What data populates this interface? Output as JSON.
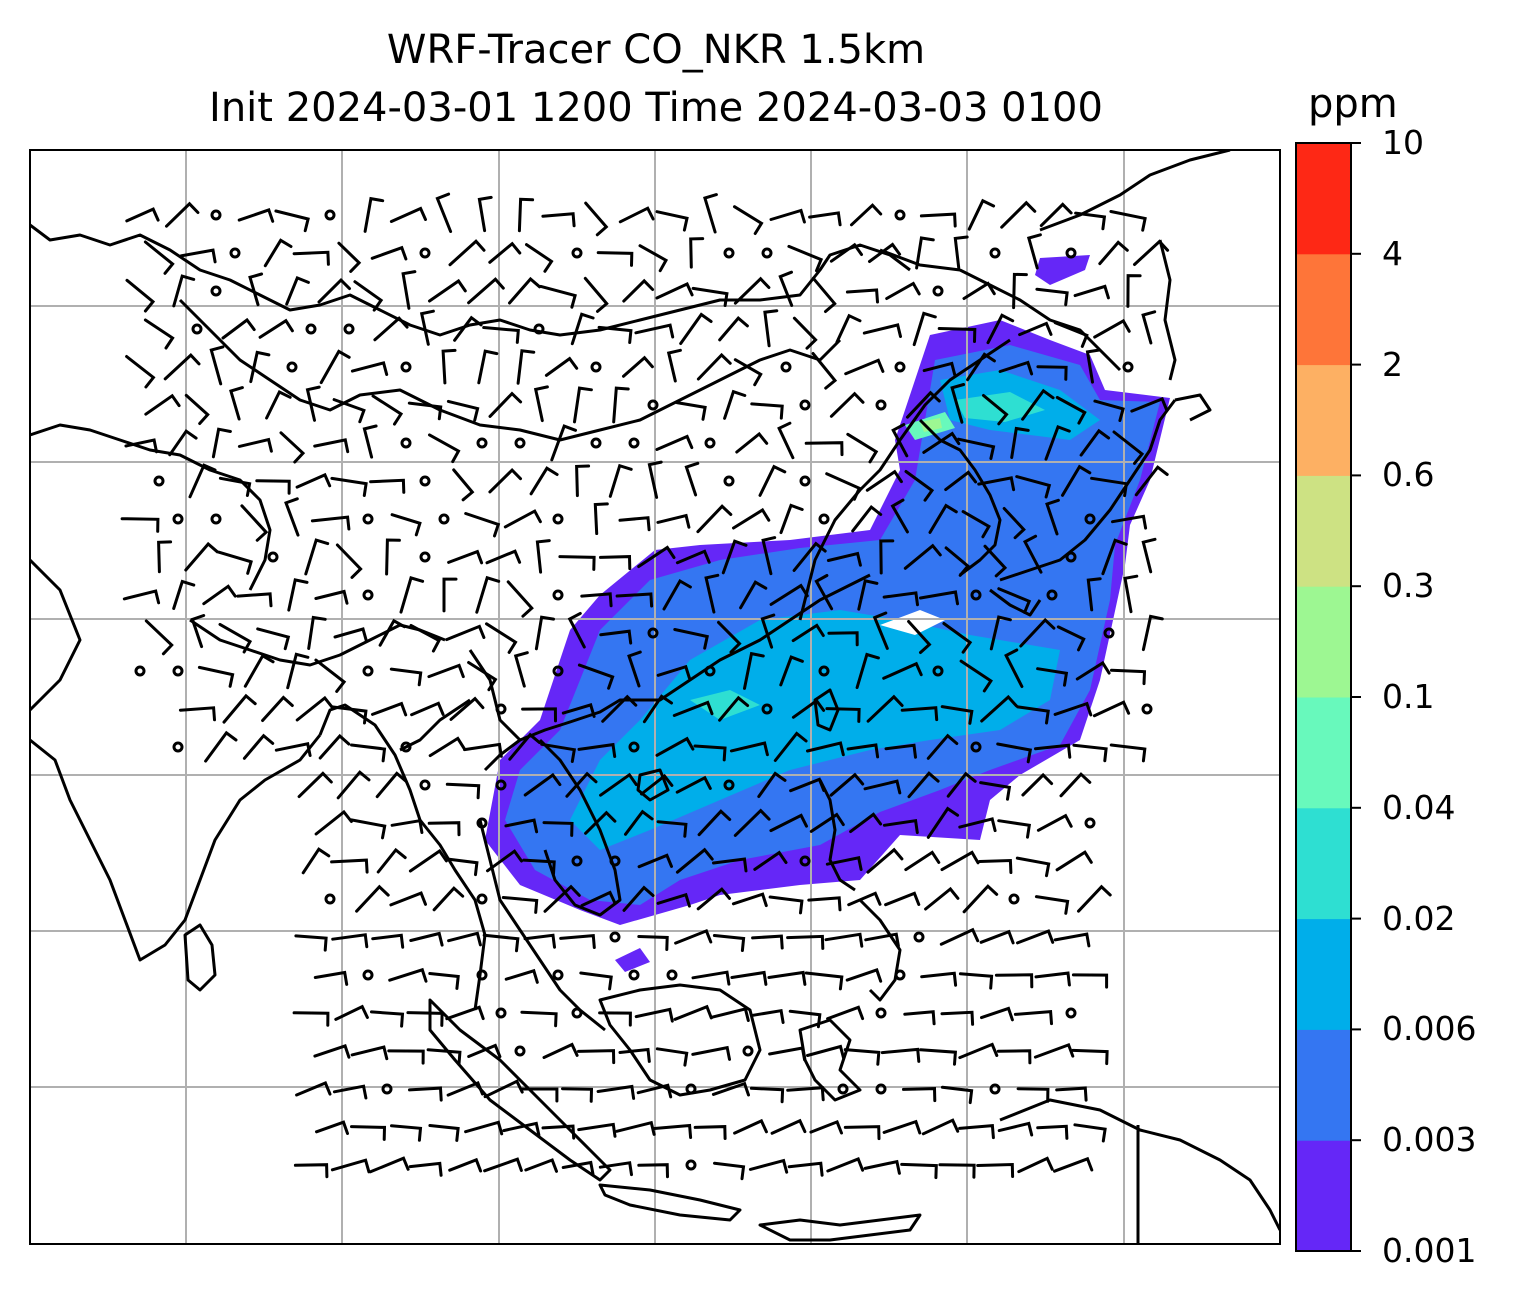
{
  "title": {
    "line1": "WRF-Tracer CO_NKR 1.5km",
    "line2": "Init 2024-03-01 1200 Time 2024-03-03 0100"
  },
  "colorbar": {
    "unit": "ppm",
    "levels": [
      "0.001",
      "0.003",
      "0.006",
      "0.02",
      "0.04",
      "0.1",
      "0.3",
      "0.6",
      "2",
      "4",
      "10"
    ],
    "colors": [
      "#6527f7",
      "#3476f2",
      "#00aeea",
      "#2edfd2",
      "#68f9bc",
      "#9df792",
      "#cde283",
      "#fdb063",
      "#fe7539",
      "#fe2815"
    ]
  },
  "map": {
    "coastline_color": "#000000",
    "gridline_color": "#b0b0b0",
    "wind_barb_color": "#000000"
  }
}
